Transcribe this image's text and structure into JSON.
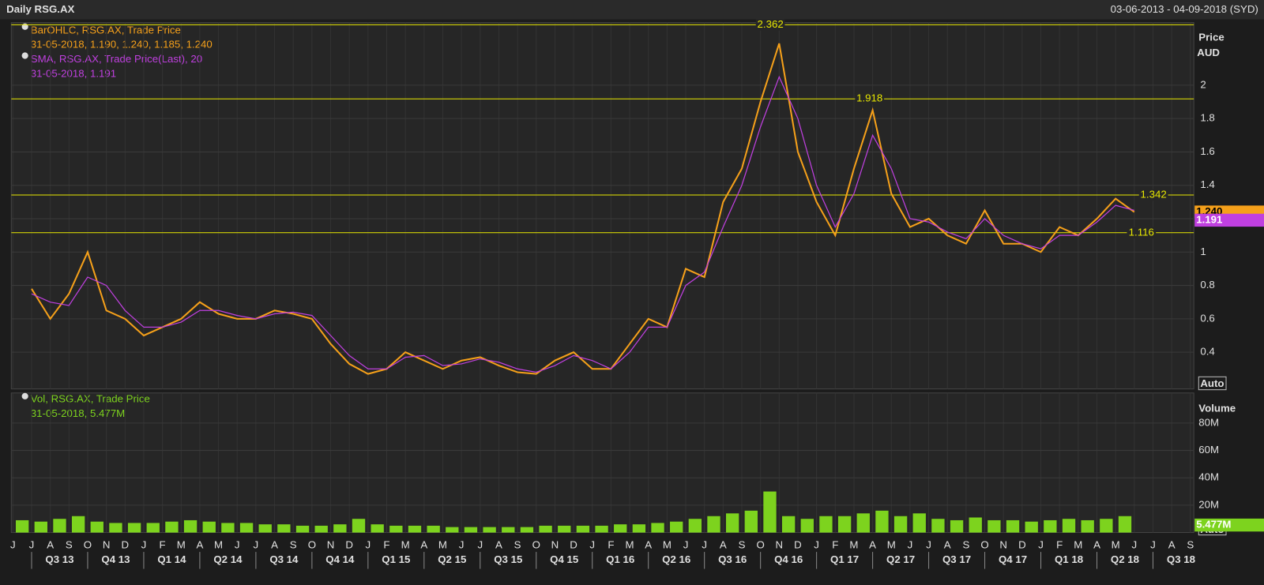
{
  "chart_data": {
    "type": "stock",
    "title": "Daily RSG.AX",
    "date_range": "03-06-2013 - 04-09-2018 (SYD)",
    "price_axis_title": "Price",
    "price_axis_unit": "AUD",
    "volume_axis_title": "Volume",
    "auto_labels": [
      "Auto",
      "Auto"
    ],
    "legend": {
      "price": {
        "name": "BarOHLC, RSG.AX, Trade Price",
        "detail": "31-05-2018, 1.190, 1.240, 1.185, 1.240"
      },
      "sma": {
        "name": "SMA, RSG.AX, Trade Price(Last),  20",
        "detail": "31-05-2018, 1.191"
      },
      "volume": {
        "name": "Vol, RSG.AX, Trade Price",
        "detail": "31-05-2018, 5.477M"
      }
    },
    "x": [
      "2013-06",
      "2013-07",
      "2013-08",
      "2013-09",
      "2013-10",
      "2013-11",
      "2013-12",
      "2014-01",
      "2014-02",
      "2014-03",
      "2014-04",
      "2014-05",
      "2014-06",
      "2014-07",
      "2014-08",
      "2014-09",
      "2014-10",
      "2014-11",
      "2014-12",
      "2015-01",
      "2015-02",
      "2015-03",
      "2015-04",
      "2015-05",
      "2015-06",
      "2015-07",
      "2015-08",
      "2015-09",
      "2015-10",
      "2015-11",
      "2015-12",
      "2016-01",
      "2016-02",
      "2016-03",
      "2016-04",
      "2016-05",
      "2016-06",
      "2016-07",
      "2016-08",
      "2016-09",
      "2016-10",
      "2016-11",
      "2016-12",
      "2017-01",
      "2017-02",
      "2017-03",
      "2017-04",
      "2017-05",
      "2017-06",
      "2017-07",
      "2017-08",
      "2017-09",
      "2017-10",
      "2017-11",
      "2017-12",
      "2018-01",
      "2018-02",
      "2018-03",
      "2018-04",
      "2018-05"
    ],
    "series": [
      {
        "name": "Trade Price",
        "color": "#f5a01a",
        "values": [
          0.78,
          0.6,
          0.75,
          1.0,
          0.65,
          0.6,
          0.5,
          0.55,
          0.6,
          0.7,
          0.63,
          0.6,
          0.6,
          0.65,
          0.63,
          0.6,
          0.45,
          0.33,
          0.27,
          0.3,
          0.4,
          0.35,
          0.3,
          0.35,
          0.37,
          0.32,
          0.28,
          0.27,
          0.35,
          0.4,
          0.3,
          0.3,
          0.45,
          0.6,
          0.55,
          0.9,
          0.85,
          1.3,
          1.5,
          1.9,
          2.25,
          1.6,
          1.3,
          1.1,
          1.5,
          1.85,
          1.35,
          1.15,
          1.2,
          1.1,
          1.05,
          1.25,
          1.05,
          1.05,
          1.0,
          1.15,
          1.1,
          1.2,
          1.32,
          1.24
        ]
      },
      {
        "name": "SMA 20",
        "color": "#c040e0",
        "values": [
          0.75,
          0.7,
          0.68,
          0.85,
          0.8,
          0.65,
          0.55,
          0.55,
          0.58,
          0.65,
          0.65,
          0.62,
          0.6,
          0.63,
          0.64,
          0.62,
          0.5,
          0.38,
          0.3,
          0.3,
          0.37,
          0.38,
          0.32,
          0.33,
          0.36,
          0.34,
          0.3,
          0.28,
          0.32,
          0.38,
          0.35,
          0.3,
          0.4,
          0.55,
          0.55,
          0.8,
          0.88,
          1.15,
          1.4,
          1.75,
          2.05,
          1.8,
          1.4,
          1.15,
          1.35,
          1.7,
          1.5,
          1.2,
          1.18,
          1.12,
          1.08,
          1.2,
          1.1,
          1.05,
          1.02,
          1.1,
          1.1,
          1.18,
          1.28,
          1.25
        ]
      },
      {
        "name": "Volume",
        "color": "#7dd31e",
        "axis": "y2",
        "values": [
          9000000,
          8000000,
          10000000,
          12000000,
          8000000,
          7000000,
          7000000,
          7000000,
          8000000,
          9000000,
          8000000,
          7000000,
          7000000,
          6000000,
          6000000,
          5000000,
          5000000,
          6000000,
          10000000,
          6000000,
          5000000,
          5000000,
          5000000,
          4000000,
          4000000,
          4000000,
          4000000,
          4000000,
          5000000,
          5000000,
          5000000,
          5000000,
          6000000,
          6000000,
          7000000,
          8000000,
          10000000,
          12000000,
          14000000,
          16000000,
          30000000,
          12000000,
          10000000,
          12000000,
          12000000,
          14000000,
          16000000,
          12000000,
          14000000,
          10000000,
          9000000,
          11000000,
          9000000,
          9000000,
          8000000,
          9000000,
          10000000,
          9000000,
          10000000,
          12000000
        ]
      }
    ],
    "reference_lines": [
      2.362,
      1.918,
      1.342,
      1.116
    ],
    "reference_color": "#e8e800",
    "last_values": [
      {
        "value": 1.24,
        "label": "1.240",
        "color": "#f5a01a"
      },
      {
        "value": 1.191,
        "label": "1.191",
        "color": "#c040e0"
      },
      {
        "value": 5477000,
        "label": "5.477M",
        "color": "#7dd31e"
      }
    ],
    "ylim": [
      0.18,
      2.375
    ],
    "yticks": [
      0.4,
      0.6,
      0.8,
      1,
      1.2,
      1.4,
      1.6,
      1.8,
      2
    ],
    "y2lim": [
      0,
      102000000
    ],
    "y2ticks": [
      {
        "value": 20000000,
        "label": "20M"
      },
      {
        "value": 40000000,
        "label": "40M"
      },
      {
        "value": 60000000,
        "label": "60M"
      },
      {
        "value": 80000000,
        "label": "80M"
      }
    ],
    "xticks": [
      {
        "value": "2013-06",
        "label": "J"
      },
      {
        "value": "2013-07",
        "label": "J"
      },
      {
        "value": "2013-08",
        "label": "A"
      },
      {
        "value": "2013-09",
        "label": "S"
      },
      {
        "value": "2013-10",
        "label": "O"
      },
      {
        "value": "2013-11",
        "label": "N"
      },
      {
        "value": "2013-12",
        "label": "D"
      },
      {
        "value": "2014-01",
        "label": "J"
      },
      {
        "value": "2014-02",
        "label": "F"
      },
      {
        "value": "2014-03",
        "label": "M"
      },
      {
        "value": "2014-04",
        "label": "A"
      },
      {
        "value": "2014-05",
        "label": "M"
      },
      {
        "value": "2014-06",
        "label": "J"
      },
      {
        "value": "2014-07",
        "label": "J"
      },
      {
        "value": "2014-08",
        "label": "A"
      },
      {
        "value": "2014-09",
        "label": "S"
      },
      {
        "value": "2014-10",
        "label": "O"
      },
      {
        "value": "2014-11",
        "label": "N"
      },
      {
        "value": "2014-12",
        "label": "D"
      },
      {
        "value": "2015-01",
        "label": "J"
      },
      {
        "value": "2015-02",
        "label": "F"
      },
      {
        "value": "2015-03",
        "label": "M"
      },
      {
        "value": "2015-04",
        "label": "A"
      },
      {
        "value": "2015-05",
        "label": "M"
      },
      {
        "value": "2015-06",
        "label": "J"
      },
      {
        "value": "2015-07",
        "label": "J"
      },
      {
        "value": "2015-08",
        "label": "A"
      },
      {
        "value": "2015-09",
        "label": "S"
      },
      {
        "value": "2015-10",
        "label": "O"
      },
      {
        "value": "2015-11",
        "label": "N"
      },
      {
        "value": "2015-12",
        "label": "D"
      },
      {
        "value": "2016-01",
        "label": "J"
      },
      {
        "value": "2016-02",
        "label": "F"
      },
      {
        "value": "2016-03",
        "label": "M"
      },
      {
        "value": "2016-04",
        "label": "A"
      },
      {
        "value": "2016-05",
        "label": "M"
      },
      {
        "value": "2016-06",
        "label": "J"
      },
      {
        "value": "2016-07",
        "label": "J"
      },
      {
        "value": "2016-08",
        "label": "A"
      },
      {
        "value": "2016-09",
        "label": "S"
      },
      {
        "value": "2016-10",
        "label": "O"
      },
      {
        "value": "2016-11",
        "label": "N"
      },
      {
        "value": "2016-12",
        "label": "D"
      },
      {
        "value": "2017-01",
        "label": "J"
      },
      {
        "value": "2017-02",
        "label": "F"
      },
      {
        "value": "2017-03",
        "label": "M"
      },
      {
        "value": "2017-04",
        "label": "A"
      },
      {
        "value": "2017-05",
        "label": "M"
      },
      {
        "value": "2017-06",
        "label": "J"
      },
      {
        "value": "2017-07",
        "label": "J"
      },
      {
        "value": "2017-08",
        "label": "A"
      },
      {
        "value": "2017-09",
        "label": "S"
      },
      {
        "value": "2017-10",
        "label": "O"
      },
      {
        "value": "2017-11",
        "label": "N"
      },
      {
        "value": "2017-12",
        "label": "D"
      },
      {
        "value": "2018-01",
        "label": "J"
      },
      {
        "value": "2018-02",
        "label": "F"
      },
      {
        "value": "2018-03",
        "label": "M"
      },
      {
        "value": "2018-04",
        "label": "A"
      },
      {
        "value": "2018-05",
        "label": "M"
      },
      {
        "value": "2018-06",
        "label": "J"
      },
      {
        "value": "2018-07",
        "label": "J"
      },
      {
        "value": "2018-08",
        "label": "A"
      },
      {
        "value": "2018-09",
        "label": "S"
      }
    ],
    "quarters": [
      {
        "value": "2013-07",
        "label": "Q3 13"
      },
      {
        "value": "2013-10",
        "label": "Q4 13"
      },
      {
        "value": "2014-01",
        "label": "Q1 14"
      },
      {
        "value": "2014-04",
        "label": "Q2 14"
      },
      {
        "value": "2014-07",
        "label": "Q3 14"
      },
      {
        "value": "2014-10",
        "label": "Q4 14"
      },
      {
        "value": "2015-01",
        "label": "Q1 15"
      },
      {
        "value": "2015-04",
        "label": "Q2 15"
      },
      {
        "value": "2015-07",
        "label": "Q3 15"
      },
      {
        "value": "2015-10",
        "label": "Q4 15"
      },
      {
        "value": "2016-01",
        "label": "Q1 16"
      },
      {
        "value": "2016-04",
        "label": "Q2 16"
      },
      {
        "value": "2016-07",
        "label": "Q3 16"
      },
      {
        "value": "2016-10",
        "label": "Q4 16"
      },
      {
        "value": "2017-01",
        "label": "Q1 17"
      },
      {
        "value": "2017-04",
        "label": "Q2 17"
      },
      {
        "value": "2017-07",
        "label": "Q3 17"
      },
      {
        "value": "2017-10",
        "label": "Q4 17"
      },
      {
        "value": "2018-01",
        "label": "Q1 18"
      },
      {
        "value": "2018-04",
        "label": "Q2 18"
      },
      {
        "value": "2018-07",
        "label": "Q3 18"
      }
    ],
    "grid": true
  }
}
